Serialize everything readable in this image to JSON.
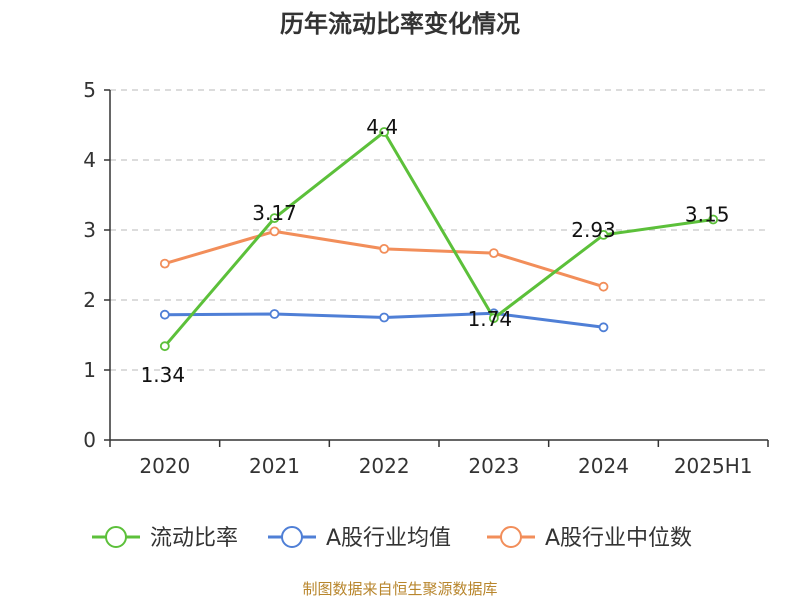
{
  "chart_data": {
    "type": "line",
    "title": "历年流动比率变化情况",
    "categories": [
      "2020",
      "2021",
      "2022",
      "2023",
      "2024",
      "2025H1"
    ],
    "ylim": [
      0,
      5
    ],
    "yticks": [
      0,
      1,
      2,
      3,
      4,
      5
    ],
    "grid": true,
    "legend_position": "bottom",
    "series": [
      {
        "name": "流动比率",
        "color": "#5cc03a",
        "values": [
          1.34,
          3.17,
          4.4,
          1.74,
          2.93,
          3.15
        ],
        "labels": [
          "1.34",
          "3.17",
          "4.4",
          "1.74",
          "2.93",
          "3.15"
        ]
      },
      {
        "name": "A股行业均值",
        "color": "#4f7fd6",
        "values": [
          1.79,
          1.8,
          1.75,
          1.81,
          1.61,
          null
        ]
      },
      {
        "name": "A股行业中位数",
        "color": "#f28e5a",
        "values": [
          2.52,
          2.98,
          2.73,
          2.67,
          2.19,
          null
        ]
      }
    ],
    "source": "制图数据来自恒生聚源数据库"
  }
}
